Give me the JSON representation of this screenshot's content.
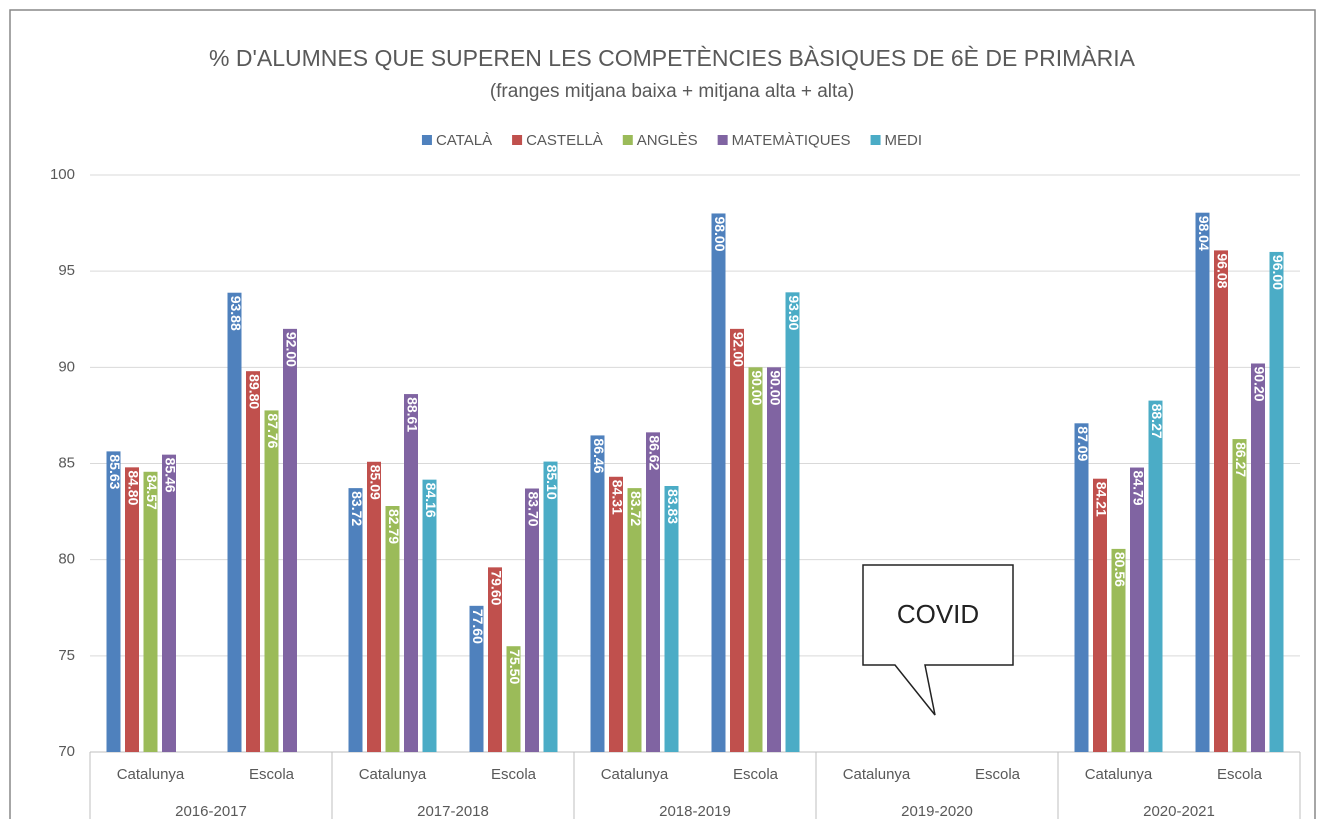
{
  "chart_data": {
    "type": "bar",
    "title": "% D'ALUMNES QUE SUPEREN LES COMPETÈNCIES BÀSIQUES DE 6È DE PRIMÀRIA",
    "subtitle": "(franges mitjana baixa + mitjana alta + alta)",
    "categories": [
      "Catalunya",
      "Escola",
      "Catalunya",
      "Escola",
      "Catalunya",
      "Escola",
      "Catalunya",
      "Escola",
      "Catalunya",
      "Escola"
    ],
    "groups": [
      "2016-2017",
      "2017-2018",
      "2018-2019",
      "2019-2020",
      "2020-2021"
    ],
    "series": [
      {
        "name": "CATALÀ",
        "color": "#4f81bd",
        "values": [
          85.63,
          93.88,
          83.72,
          77.6,
          86.46,
          98,
          null,
          null,
          87.09,
          98.04
        ],
        "value_labels": [
          "85.63",
          "93.88",
          "83.72",
          "77.60",
          "86.46",
          "98.00",
          null,
          null,
          "87.09",
          "98.04"
        ]
      },
      {
        "name": "CASTELLÀ",
        "color": "#c0504d",
        "values": [
          84.8,
          89.8,
          85.09,
          79.6,
          84.31,
          92,
          null,
          null,
          84.21,
          96.08
        ],
        "value_labels": [
          "84.80",
          "89.80",
          "85.09",
          "79.60",
          "84.31",
          "92.00",
          null,
          null,
          "84.21",
          "96.08"
        ]
      },
      {
        "name": "ANGLÈS",
        "color": "#9bbb59",
        "values": [
          84.57,
          87.76,
          82.79,
          75.5,
          83.72,
          90,
          null,
          null,
          80.56,
          86.27
        ],
        "value_labels": [
          "84.57",
          "87.76",
          "82.79",
          "75.50",
          "83.72",
          "90.00",
          null,
          null,
          "80.56",
          "86.27"
        ]
      },
      {
        "name": "MATEMÀTIQUES",
        "color": "#8064a2",
        "values": [
          85.46,
          92,
          88.61,
          83.7,
          86.62,
          90,
          null,
          null,
          84.79,
          90.2
        ],
        "value_labels": [
          "85.46",
          "92.00",
          "88.61",
          "83.70",
          "86.62",
          "90.00",
          null,
          null,
          "84.79",
          "90.20"
        ]
      },
      {
        "name": "MEDI",
        "color": "#4bacc6",
        "values": [
          null,
          null,
          84.16,
          85.1,
          83.83,
          93.9,
          null,
          null,
          88.27,
          96
        ],
        "value_labels": [
          null,
          null,
          "84.16",
          "85.10",
          "83.83",
          "93.90",
          null,
          null,
          "88.27",
          "96.00"
        ]
      }
    ],
    "ylim": [
      70,
      100
    ],
    "yticks": [
      70,
      75,
      80,
      85,
      90,
      95,
      100
    ],
    "grid": true,
    "legend": "top",
    "annotation": "COVID"
  }
}
